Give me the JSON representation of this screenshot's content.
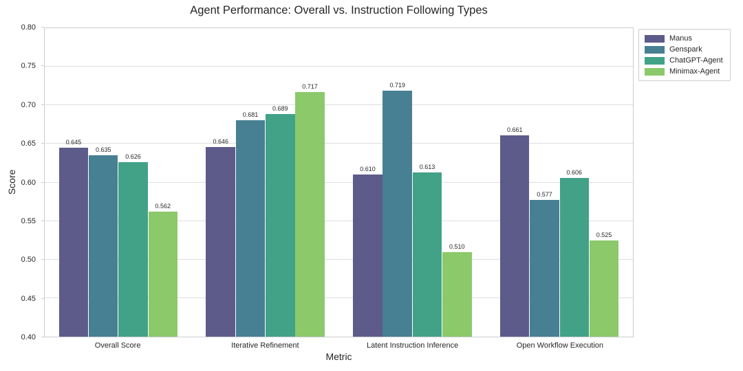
{
  "chart_data": {
    "type": "bar",
    "title": "Agent Performance: Overall vs. Instruction Following Types",
    "xlabel": "Metric",
    "ylabel": "Score",
    "ylim": [
      0.4,
      0.8
    ],
    "yticks": [
      0.4,
      0.45,
      0.5,
      0.55,
      0.6,
      0.65,
      0.7,
      0.75,
      0.8
    ],
    "grid": true,
    "value_labels": true,
    "legend_position": "outside-upper-right",
    "categories": [
      "Overall Score",
      "Iterative Refinement",
      "Latent Instruction Inference",
      "Open Workflow Execution"
    ],
    "series": [
      {
        "name": "Manus",
        "color": "#5c5b8a",
        "values": [
          0.645,
          0.646,
          0.61,
          0.661
        ]
      },
      {
        "name": "Genspark",
        "color": "#477f93",
        "values": [
          0.635,
          0.681,
          0.719,
          0.577
        ]
      },
      {
        "name": "ChatGPT-Agent",
        "color": "#41a287",
        "values": [
          0.626,
          0.689,
          0.613,
          0.606
        ]
      },
      {
        "name": "Minimax-Agent",
        "color": "#8bc96a",
        "values": [
          0.562,
          0.717,
          0.51,
          0.525
        ]
      }
    ],
    "colors": {
      "grid": "#dcdee1",
      "spine": "#c9ccd0",
      "text": "#262626",
      "background": "#ffffff"
    }
  }
}
